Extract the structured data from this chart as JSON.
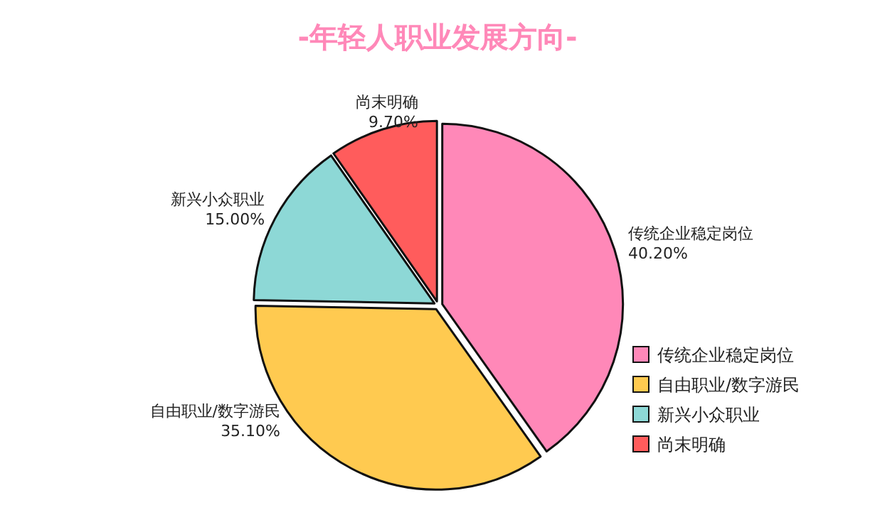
{
  "chart_data": {
    "type": "pie",
    "title": "-年轻人职业发展方向-",
    "categories": [
      "传统企业稳定岗位",
      "自由职业/数字游民",
      "新兴小众职业",
      "尚末明确"
    ],
    "values": [
      40.2,
      35.1,
      15.0,
      9.7
    ],
    "value_labels": [
      "40.20%",
      "35.10%",
      "15.00%",
      "9.70%"
    ],
    "colors": [
      "#ff88b8",
      "#ffca50",
      "#8dd8d6",
      "#ff5c5c"
    ],
    "legend": "bottom right"
  }
}
